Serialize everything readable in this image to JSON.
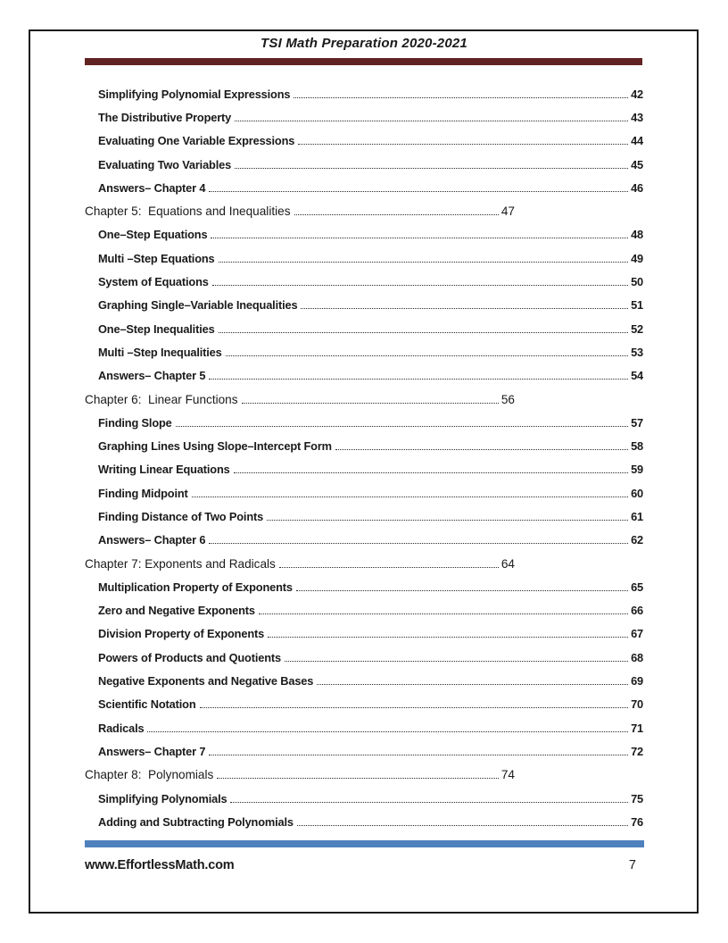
{
  "header": {
    "title": "TSI Math Preparation 2020-2021"
  },
  "colors": {
    "header_rule": "#622423",
    "footer_rule": "#4F81BD",
    "text": "#1A1A1A"
  },
  "toc": {
    "entries": [
      {
        "type": "section",
        "label": "Simplifying Polynomial Expressions",
        "page": "42"
      },
      {
        "type": "section",
        "label": "The Distributive Property",
        "page": "43"
      },
      {
        "type": "section",
        "label": "Evaluating One Variable Expressions",
        "page": "44"
      },
      {
        "type": "section",
        "label": "Evaluating Two Variables",
        "page": "45"
      },
      {
        "type": "section",
        "label": "Answers– Chapter 4",
        "page": "46"
      },
      {
        "type": "chapter",
        "label": "Chapter 5:  Equations and Inequalities",
        "page": "47"
      },
      {
        "type": "section",
        "label": "One–Step Equations",
        "page": "48"
      },
      {
        "type": "section",
        "label": "Multi –Step Equations",
        "page": "49"
      },
      {
        "type": "section",
        "label": "System of Equations",
        "page": "50"
      },
      {
        "type": "section",
        "label": "Graphing Single–Variable Inequalities",
        "page": "51"
      },
      {
        "type": "section",
        "label": "One–Step Inequalities",
        "page": "52"
      },
      {
        "type": "section",
        "label": "Multi –Step Inequalities",
        "page": "53"
      },
      {
        "type": "section",
        "label": "Answers– Chapter 5",
        "page": "54"
      },
      {
        "type": "chapter",
        "label": "Chapter 6:  Linear Functions",
        "page": "56"
      },
      {
        "type": "section",
        "label": "Finding Slope",
        "page": "57"
      },
      {
        "type": "section",
        "label": "Graphing Lines Using Slope–Intercept Form",
        "page": "58"
      },
      {
        "type": "section",
        "label": "Writing Linear Equations",
        "page": "59"
      },
      {
        "type": "section",
        "label": "Finding Midpoint",
        "page": "60"
      },
      {
        "type": "section",
        "label": "Finding Distance of Two Points",
        "page": "61"
      },
      {
        "type": "section",
        "label": "Answers– Chapter 6",
        "page": "62"
      },
      {
        "type": "chapter",
        "label": "Chapter 7: Exponents and Radicals",
        "page": "64"
      },
      {
        "type": "section",
        "label": "Multiplication Property of Exponents",
        "page": "65"
      },
      {
        "type": "section",
        "label": "Zero and Negative Exponents",
        "page": "66"
      },
      {
        "type": "section",
        "label": "Division Property of Exponents",
        "page": "67"
      },
      {
        "type": "section",
        "label": "Powers of Products and Quotients",
        "page": "68"
      },
      {
        "type": "section",
        "label": "Negative Exponents and Negative Bases",
        "page": "69"
      },
      {
        "type": "section",
        "label": "Scientific Notation",
        "page": "70"
      },
      {
        "type": "section",
        "label": "Radicals",
        "page": "71"
      },
      {
        "type": "section",
        "label": "Answers– Chapter 7",
        "page": "72"
      },
      {
        "type": "chapter",
        "label": "Chapter 8:  Polynomials",
        "page": "74"
      },
      {
        "type": "section",
        "label": "Simplifying Polynomials",
        "page": "75"
      },
      {
        "type": "section",
        "label": "Adding and Subtracting Polynomials",
        "page": "76"
      }
    ]
  },
  "footer": {
    "site": "www.EffortlessMath.com",
    "page_number": "7"
  }
}
